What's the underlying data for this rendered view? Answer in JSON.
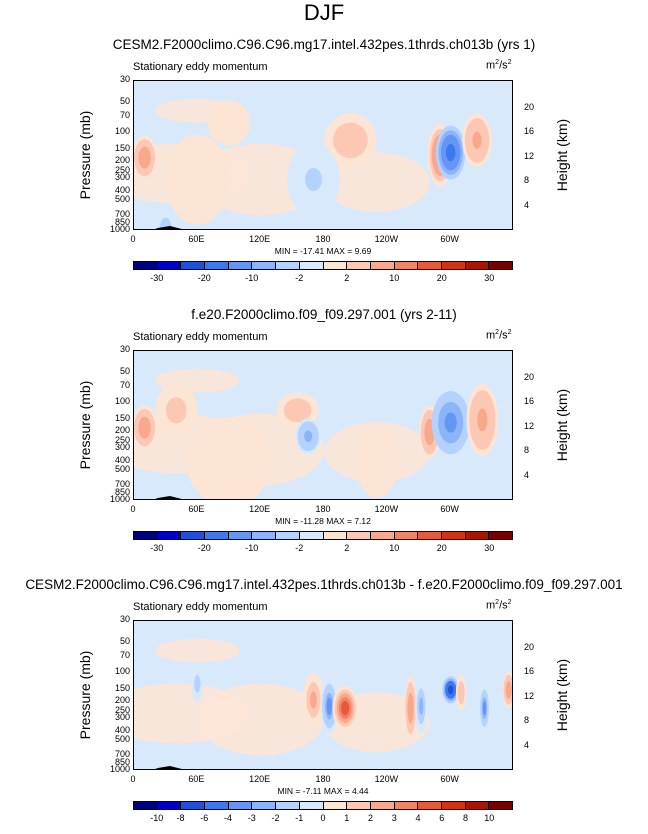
{
  "main_title": "DJF",
  "palette_16": [
    "#00007f",
    "#0000c8",
    "#1e50dc",
    "#3c78f0",
    "#6496f5",
    "#8cb4fa",
    "#b4d2ff",
    "#d7e9fb",
    "#fde5d6",
    "#fcc8b4",
    "#f9a88c",
    "#f48264",
    "#e65a3c",
    "#d23214",
    "#aa1400",
    "#780000"
  ],
  "chart_data": [
    {
      "type": "heatmap",
      "title": "CESM2.F2000climo.C96.C96.mg17.intel.432pes.1thrds.ch013b (yrs 1)",
      "left_label": "Stationary eddy momentum",
      "units": "m²/s²",
      "units_base": "m",
      "units_sup1": "2",
      "units_mid": "/s",
      "units_sup2": "2",
      "ylabel": "Pressure (mb)",
      "y2label": "Height (km)",
      "xticks": [
        "0",
        "60E",
        "120E",
        "180",
        "120W",
        "60W"
      ],
      "yticks": [
        "30",
        "50",
        "70",
        "100",
        "150",
        "200",
        "250",
        "300",
        "400",
        "500",
        "700",
        "850",
        "1000"
      ],
      "y2ticks": [
        "20",
        "16",
        "12",
        "8",
        "4"
      ],
      "minmax": "MIN = -17.41  MAX =   9.69",
      "cbar_labels": [
        "-30",
        "-20",
        "-10",
        "-2",
        "2",
        "10",
        "20",
        "30"
      ],
      "features": [
        {
          "lon": 10,
          "p": 180,
          "value": 8,
          "rx": 12,
          "ry": 0.25
        },
        {
          "lon": 205,
          "p": 120,
          "value": 5,
          "rx": 25,
          "ry": 0.3
        },
        {
          "lon": 290,
          "p": 170,
          "value": 9.69,
          "rx": 12,
          "ry": 0.35
        },
        {
          "lon": 300,
          "p": 160,
          "value": -17.41,
          "rx": 14,
          "ry": 0.3
        },
        {
          "lon": 325,
          "p": 120,
          "value": 6,
          "rx": 14,
          "ry": 0.3
        },
        {
          "lon": 60,
          "p": 300,
          "value": 2,
          "rx": 30,
          "ry": 0.5
        },
        {
          "lon": 170,
          "p": 300,
          "value": -2,
          "rx": 25,
          "ry": 0.4
        },
        {
          "lon": 90,
          "p": 80,
          "value": 2,
          "rx": 20,
          "ry": 0.25
        },
        {
          "lon": 30,
          "p": 900,
          "value": -4,
          "rx": 8,
          "ry": 0.15
        }
      ]
    },
    {
      "type": "heatmap",
      "title": "f.e20.F2000climo.f09_f09.297.001 (yrs 2-11)",
      "left_label": "Stationary eddy momentum",
      "units": "m²/s²",
      "units_base": "m",
      "units_sup1": "2",
      "units_mid": "/s",
      "units_sup2": "2",
      "ylabel": "Pressure (mb)",
      "y2label": "Height (km)",
      "xticks": [
        "0",
        "60E",
        "120E",
        "180",
        "120W",
        "60W"
      ],
      "yticks": [
        "30",
        "50",
        "70",
        "100",
        "150",
        "200",
        "250",
        "300",
        "400",
        "500",
        "700",
        "850",
        "1000"
      ],
      "y2ticks": [
        "20",
        "16",
        "12",
        "8",
        "4"
      ],
      "minmax": "MIN = -11.28  MAX =   7.12",
      "cbar_labels": [
        "-30",
        "-20",
        "-10",
        "-2",
        "2",
        "10",
        "20",
        "30"
      ],
      "features": [
        {
          "lon": 10,
          "p": 180,
          "value": 7,
          "rx": 12,
          "ry": 0.25
        },
        {
          "lon": 40,
          "p": 120,
          "value": 3,
          "rx": 20,
          "ry": 0.3
        },
        {
          "lon": 155,
          "p": 120,
          "value": 4,
          "rx": 20,
          "ry": 0.2
        },
        {
          "lon": 165,
          "p": 220,
          "value": -6,
          "rx": 12,
          "ry": 0.2
        },
        {
          "lon": 280,
          "p": 200,
          "value": 7.12,
          "rx": 10,
          "ry": 0.3
        },
        {
          "lon": 300,
          "p": 160,
          "value": -11.28,
          "rx": 18,
          "ry": 0.35
        },
        {
          "lon": 330,
          "p": 150,
          "value": 6,
          "rx": 15,
          "ry": 0.4
        },
        {
          "lon": 90,
          "p": 400,
          "value": 2,
          "rx": 40,
          "ry": 0.5
        },
        {
          "lon": 230,
          "p": 400,
          "value": 2,
          "rx": 20,
          "ry": 0.4
        }
      ]
    },
    {
      "type": "heatmap",
      "title": "CESM2.F2000climo.C96.C96.mg17.intel.432pes.1thrds.ch013b - f.e20.F2000climo.f09_f09.297.001",
      "left_label": "Stationary eddy momentum",
      "units": "m²/s²",
      "units_base": "m",
      "units_sup1": "2",
      "units_mid": "/s",
      "units_sup2": "2",
      "ylabel": "Pressure (mb)",
      "y2label": "Height (km)",
      "xticks": [
        "0",
        "60E",
        "120E",
        "180",
        "120W",
        "60W"
      ],
      "yticks": [
        "30",
        "50",
        "70",
        "100",
        "150",
        "200",
        "250",
        "300",
        "400",
        "500",
        "700",
        "850",
        "1000"
      ],
      "y2ticks": [
        "20",
        "16",
        "12",
        "8",
        "4"
      ],
      "minmax": "MIN = -7.11  MAX =   4.44",
      "cbar_labels": [
        "-10",
        "-8",
        "-6",
        "-4",
        "-3",
        "-2",
        "-1",
        "0",
        "1",
        "2",
        "3",
        "4",
        "6",
        "8",
        "10"
      ],
      "features": [
        {
          "lon": 170,
          "p": 190,
          "value": 2.5,
          "rx": 10,
          "ry": 0.3
        },
        {
          "lon": 185,
          "p": 220,
          "value": -3,
          "rx": 8,
          "ry": 0.3
        },
        {
          "lon": 200,
          "p": 230,
          "value": 4.44,
          "rx": 12,
          "ry": 0.25
        },
        {
          "lon": 262,
          "p": 230,
          "value": 3,
          "rx": 6,
          "ry": 0.35
        },
        {
          "lon": 272,
          "p": 220,
          "value": -2,
          "rx": 6,
          "ry": 0.3
        },
        {
          "lon": 300,
          "p": 150,
          "value": -7.11,
          "rx": 8,
          "ry": 0.15
        },
        {
          "lon": 310,
          "p": 160,
          "value": 2,
          "rx": 5,
          "ry": 0.2
        },
        {
          "lon": 332,
          "p": 230,
          "value": -3,
          "rx": 5,
          "ry": 0.25
        },
        {
          "lon": 355,
          "p": 150,
          "value": 3,
          "rx": 6,
          "ry": 0.2
        },
        {
          "lon": 60,
          "p": 130,
          "value": -1.5,
          "rx": 6,
          "ry": 0.2
        }
      ]
    }
  ]
}
